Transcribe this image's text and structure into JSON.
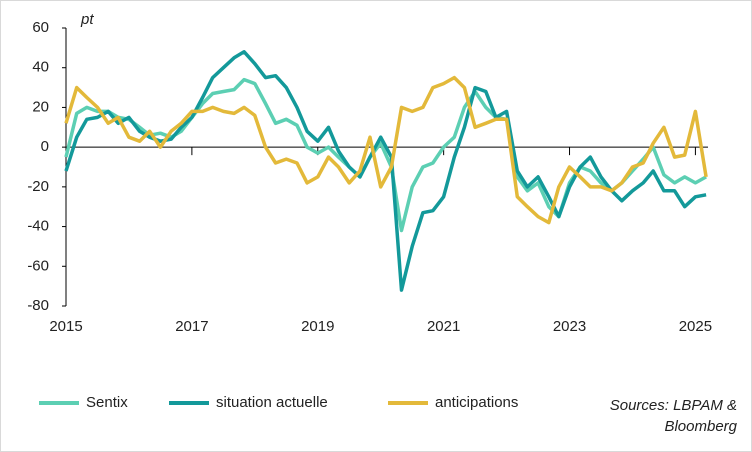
{
  "chart_data": {
    "type": "line",
    "y_unit": "pt",
    "source": "Sources: LBPAM & Bloomberg",
    "x": [
      2015,
      2015.17,
      2015.33,
      2015.5,
      2015.67,
      2015.83,
      2016,
      2016.17,
      2016.33,
      2016.5,
      2016.67,
      2016.83,
      2017,
      2017.17,
      2017.33,
      2017.5,
      2017.67,
      2017.83,
      2018,
      2018.17,
      2018.33,
      2018.5,
      2018.67,
      2018.83,
      2019,
      2019.17,
      2019.33,
      2019.5,
      2019.67,
      2019.83,
      2020,
      2020.17,
      2020.33,
      2020.5,
      2020.67,
      2020.83,
      2021,
      2021.17,
      2021.33,
      2021.5,
      2021.67,
      2021.83,
      2022,
      2022.17,
      2022.33,
      2022.5,
      2022.67,
      2022.83,
      2023,
      2023.17,
      2023.33,
      2023.5,
      2023.67,
      2023.83,
      2024,
      2024.17,
      2024.33,
      2024.5,
      2024.67,
      2024.83,
      2025,
      2025.17
    ],
    "series": [
      {
        "name": "Sentix",
        "color": "#5ccfb3",
        "values": [
          -5,
          17,
          20,
          18,
          18,
          15,
          14,
          10,
          6,
          7,
          5,
          8,
          15,
          22,
          27,
          28,
          29,
          34,
          32,
          22,
          12,
          14,
          11,
          0,
          -3,
          0,
          -5,
          -10,
          -15,
          -5,
          2,
          -10,
          -42,
          -20,
          -10,
          -8,
          0,
          5,
          20,
          28,
          20,
          15,
          14,
          -15,
          -22,
          -18,
          -30,
          -35,
          -18,
          -10,
          -12,
          -18,
          -22,
          -18,
          -12,
          -6,
          0,
          -14,
          -18,
          -15,
          -18,
          -15
        ]
      },
      {
        "name": "situation actuelle",
        "color": "#13999a",
        "values": [
          -12,
          5,
          14,
          15,
          18,
          12,
          15,
          8,
          5,
          3,
          4,
          10,
          15,
          25,
          35,
          40,
          45,
          48,
          42,
          35,
          36,
          30,
          20,
          8,
          3,
          10,
          -2,
          -10,
          -15,
          -5,
          5,
          -5,
          -72,
          -50,
          -33,
          -32,
          -25,
          -5,
          10,
          30,
          28,
          15,
          18,
          -12,
          -20,
          -15,
          -25,
          -35,
          -20,
          -10,
          -5,
          -15,
          -22,
          -27,
          -22,
          -18,
          -12,
          -22,
          -22,
          -30,
          -25,
          -24
        ]
      },
      {
        "name": "anticipations",
        "color": "#e3b93a",
        "values": [
          12,
          30,
          25,
          20,
          12,
          15,
          5,
          3,
          8,
          0,
          8,
          12,
          18,
          18,
          20,
          18,
          17,
          20,
          16,
          0,
          -8,
          -6,
          -8,
          -18,
          -15,
          -5,
          -10,
          -18,
          -12,
          5,
          -20,
          -10,
          20,
          18,
          20,
          30,
          32,
          35,
          30,
          10,
          12,
          14,
          14,
          -25,
          -30,
          -35,
          -38,
          -20,
          -10,
          -15,
          -20,
          -20,
          -22,
          -18,
          -10,
          -8,
          2,
          10,
          -5,
          -4,
          18,
          -15
        ]
      }
    ],
    "xlim": [
      2015,
      2025.2
    ],
    "xticks": [
      2015,
      2017,
      2019,
      2021,
      2023,
      2025
    ],
    "ylim": [
      -80,
      60
    ],
    "yticks": [
      -80,
      -60,
      -40,
      -20,
      0,
      20,
      40,
      60
    ]
  }
}
